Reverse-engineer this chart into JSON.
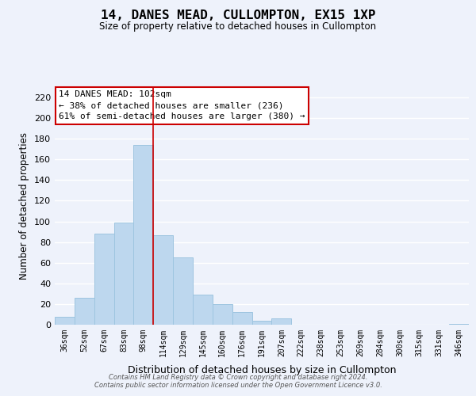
{
  "title": "14, DANES MEAD, CULLOMPTON, EX15 1XP",
  "subtitle": "Size of property relative to detached houses in Cullompton",
  "xlabel": "Distribution of detached houses by size in Cullompton",
  "ylabel": "Number of detached properties",
  "bar_labels": [
    "36sqm",
    "52sqm",
    "67sqm",
    "83sqm",
    "98sqm",
    "114sqm",
    "129sqm",
    "145sqm",
    "160sqm",
    "176sqm",
    "191sqm",
    "207sqm",
    "222sqm",
    "238sqm",
    "253sqm",
    "269sqm",
    "284sqm",
    "300sqm",
    "315sqm",
    "331sqm",
    "346sqm"
  ],
  "bar_values": [
    8,
    26,
    88,
    99,
    174,
    87,
    65,
    29,
    20,
    12,
    4,
    6,
    0,
    0,
    0,
    0,
    0,
    0,
    0,
    0,
    1
  ],
  "bar_color": "#bdd7ee",
  "bar_edge_color": "#9ec5e0",
  "ylim": [
    0,
    230
  ],
  "yticks": [
    0,
    20,
    40,
    60,
    80,
    100,
    120,
    140,
    160,
    180,
    200,
    220
  ],
  "vline_x": 4.5,
  "vline_color": "#cc0000",
  "annotation_title": "14 DANES MEAD: 102sqm",
  "annotation_line1": "← 38% of detached houses are smaller (236)",
  "annotation_line2": "61% of semi-detached houses are larger (380) →",
  "annotation_box_color": "#ffffff",
  "annotation_box_edge": "#cc0000",
  "footer1": "Contains HM Land Registry data © Crown copyright and database right 2024.",
  "footer2": "Contains public sector information licensed under the Open Government Licence v3.0.",
  "background_color": "#eef2fb",
  "grid_color": "#ffffff"
}
